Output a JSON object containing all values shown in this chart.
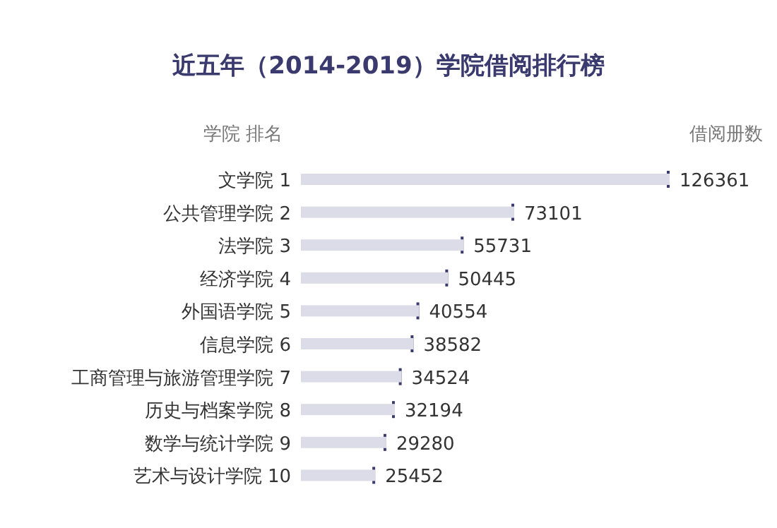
{
  "chart_data": {
    "type": "bar",
    "orientation": "horizontal",
    "title": "近五年（2014-2019）学院借阅排行榜",
    "ylabel": "学院  排名",
    "xlabel": "借阅册数",
    "categories": [
      "文学院  1",
      "公共管理学院  2",
      "法学院  3",
      "经济学院  4",
      "外国语学院  5",
      "信息学院  6",
      "工商管理与旅游管理学院  7",
      "历史与档案学院  8",
      "数学与统计学院  9",
      "艺术与设计学院 10"
    ],
    "values": [
      126361,
      73101,
      55731,
      50445,
      40554,
      38582,
      34524,
      32194,
      29280,
      25452
    ],
    "color": "#dcdce8",
    "data_labels": true
  }
}
